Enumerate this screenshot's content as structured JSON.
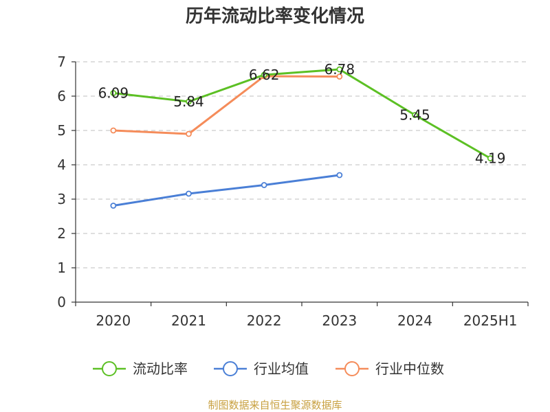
{
  "chart_data": {
    "type": "line",
    "title": "历年流动比率变化情况",
    "categories": [
      "2020",
      "2021",
      "2022",
      "2023",
      "2024",
      "2025H1"
    ],
    "ylim": [
      0,
      7
    ],
    "yticks": [
      0,
      1,
      2,
      3,
      4,
      5,
      6,
      7
    ],
    "grid": true,
    "legend_position": "bottom",
    "series": [
      {
        "name": "流动比率",
        "color": "#5cc024",
        "values": [
          6.09,
          5.84,
          6.62,
          6.78,
          5.45,
          4.19
        ],
        "labels": [
          "6.09",
          "5.84",
          "6.62",
          "6.78",
          "5.45",
          "4.19"
        ]
      },
      {
        "name": "行业均值",
        "color": "#4a7fd6",
        "values": [
          2.81,
          3.16,
          3.41,
          3.7,
          null,
          null
        ]
      },
      {
        "name": "行业中位数",
        "color": "#f58c5a",
        "values": [
          5.0,
          4.9,
          6.58,
          6.57,
          null,
          null
        ]
      }
    ]
  },
  "source": "制图数据来自恒生聚源数据库"
}
